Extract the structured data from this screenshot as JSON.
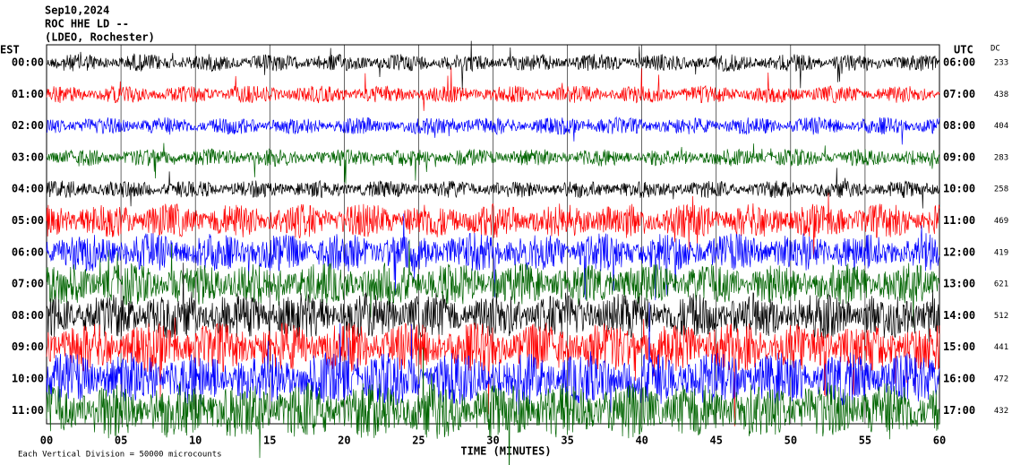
{
  "chart_data": {
    "type": "helicorder",
    "title_lines": [
      "Sep10,2024",
      "ROC HHE LD --",
      "(LDEO, Rochester)"
    ],
    "left_axis_label": "EST",
    "right_axis_label": "UTC",
    "dc_label": "DC",
    "rows": [
      {
        "est": "00:00",
        "utc": "06:00",
        "dc": 233,
        "color": "#000000"
      },
      {
        "est": "01:00",
        "utc": "07:00",
        "dc": 438,
        "color": "#ff0000"
      },
      {
        "est": "02:00",
        "utc": "08:00",
        "dc": 404,
        "color": "#0000ff"
      },
      {
        "est": "03:00",
        "utc": "09:00",
        "dc": 283,
        "color": "#006400"
      },
      {
        "est": "04:00",
        "utc": "10:00",
        "dc": 258,
        "color": "#000000"
      },
      {
        "est": "05:00",
        "utc": "11:00",
        "dc": 469,
        "color": "#ff0000"
      },
      {
        "est": "06:00",
        "utc": "12:00",
        "dc": 419,
        "color": "#0000ff"
      },
      {
        "est": "07:00",
        "utc": "13:00",
        "dc": 621,
        "color": "#006400"
      },
      {
        "est": "08:00",
        "utc": "14:00",
        "dc": 512,
        "color": "#000000"
      },
      {
        "est": "09:00",
        "utc": "15:00",
        "dc": 441,
        "color": "#ff0000"
      },
      {
        "est": "10:00",
        "utc": "16:00",
        "dc": 472,
        "color": "#0000ff"
      },
      {
        "est": "11:00",
        "utc": "17:00",
        "dc": 432,
        "color": "#006400"
      }
    ],
    "xlabel": "TIME (MINUTES)",
    "xlim": [
      0,
      60
    ],
    "xticks": [
      {
        "value": 0,
        "label": "00"
      },
      {
        "value": 5,
        "label": "05"
      },
      10,
      15,
      20,
      25,
      30,
      35,
      40,
      45,
      50,
      55,
      60
    ],
    "note": "Each Vertical Division = 50000 microcounts"
  }
}
